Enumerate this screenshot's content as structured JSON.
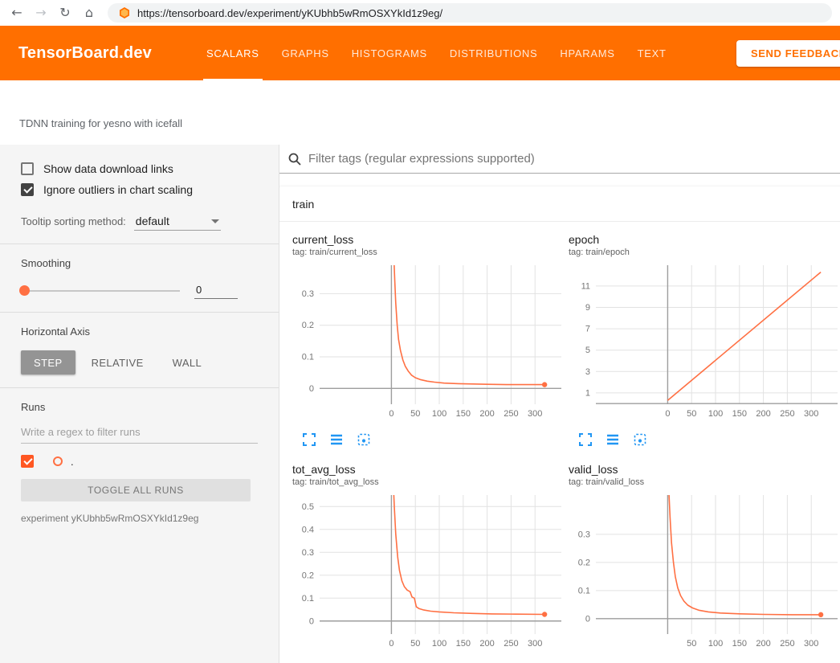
{
  "browser": {
    "url": "https://tensorboard.dev/experiment/yKUbhb5wRmOSXYkId1z9eg/",
    "glyphs": {
      "back": "←",
      "forward": "→",
      "reload": "↻",
      "home": "⌂"
    }
  },
  "header": {
    "logo": "TensorBoard.dev",
    "tabs": [
      "SCALARS",
      "GRAPHS",
      "HISTOGRAMS",
      "DISTRIBUTIONS",
      "HPARAMS",
      "TEXT"
    ],
    "active_tab": "SCALARS",
    "feedback_button": "SEND FEEDBACK"
  },
  "experiment_title": "TDNN training for yesno with icefall",
  "sidebar": {
    "show_download": {
      "label": "Show data download links",
      "checked": false
    },
    "ignore_outliers": {
      "label": "Ignore outliers in chart scaling",
      "checked": true
    },
    "tooltip_sorting_label": "Tooltip sorting method:",
    "tooltip_sorting_value": "default",
    "smoothing_label": "Smoothing",
    "smoothing_value": "0",
    "horizontal_axis_label": "Horizontal Axis",
    "axis_buttons": [
      "STEP",
      "RELATIVE",
      "WALL"
    ],
    "axis_selected": "STEP",
    "runs_label": "Runs",
    "runs_filter_placeholder": "Write a regex to filter runs",
    "run_item": {
      "label": ".",
      "checked": true,
      "color": "#ff7043"
    },
    "toggle_all_label": "TOGGLE ALL RUNS",
    "experiment_note": "experiment yKUbhb5wRmOSXYkId1z9eg"
  },
  "main": {
    "filter_placeholder": "Filter tags (regular expressions supported)",
    "group_title": "train"
  },
  "icons": {
    "browser": [
      "back-arrow",
      "forward-arrow",
      "reload",
      "home"
    ],
    "address_favicon": "tensorboard-logo",
    "filter": "search-icon",
    "tooltip_caret": "chevron-down-icon",
    "chart_toolbar": [
      "expand-chart-icon",
      "runs-table-icon",
      "fit-domain-icon"
    ]
  },
  "colors": {
    "header_orange": "#ff6f00",
    "run_line": "#ff7043",
    "icon_blue": "#2196f3",
    "grid": "#e2e2e2",
    "zero_axis": "#9e9e9e"
  },
  "chart_data": [
    {
      "type": "line",
      "title": "current_loss",
      "tag": "tag: train/current_loss",
      "xlim": [
        -150,
        355
      ],
      "ylim": [
        -0.05,
        0.39
      ],
      "xticks": [
        0,
        50,
        100,
        150,
        200,
        250,
        300
      ],
      "yticks": [
        0,
        0.1,
        0.2,
        0.3
      ],
      "series": [
        {
          "name": ".",
          "color": "#ff7043",
          "end_dot": true,
          "points": [
            [
              2,
              0.55
            ],
            [
              5,
              0.42
            ],
            [
              7,
              0.34
            ],
            [
              9,
              0.27
            ],
            [
              12,
              0.2
            ],
            [
              15,
              0.155
            ],
            [
              19,
              0.12
            ],
            [
              24,
              0.09
            ],
            [
              29,
              0.07
            ],
            [
              35,
              0.055
            ],
            [
              42,
              0.042
            ],
            [
              50,
              0.034
            ],
            [
              60,
              0.028
            ],
            [
              75,
              0.023
            ],
            [
              90,
              0.02
            ],
            [
              110,
              0.017
            ],
            [
              140,
              0.015
            ],
            [
              170,
              0.014
            ],
            [
              200,
              0.013
            ],
            [
              240,
              0.012
            ],
            [
              280,
              0.012
            ],
            [
              320,
              0.012
            ]
          ]
        }
      ]
    },
    {
      "type": "line",
      "title": "epoch",
      "tag": "tag: train/epoch",
      "xlim": [
        -150,
        355
      ],
      "ylim": [
        -0.06,
        12.95
      ],
      "xticks": [
        0,
        50,
        100,
        150,
        200,
        250,
        300
      ],
      "yticks": [
        1,
        3,
        5,
        7,
        9,
        11
      ],
      "series": [
        {
          "name": ".",
          "color": "#ff7043",
          "end_dot": false,
          "points": [
            [
              0,
              0.3
            ],
            [
              320,
              12.3
            ]
          ]
        }
      ]
    },
    {
      "type": "line",
      "title": "tot_avg_loss",
      "tag": "tag: train/tot_avg_loss",
      "xlim": [
        -150,
        355
      ],
      "ylim": [
        -0.057,
        0.55
      ],
      "xticks": [
        0,
        50,
        100,
        150,
        200,
        250,
        300
      ],
      "yticks": [
        0,
        0.1,
        0.2,
        0.3,
        0.4,
        0.5
      ],
      "series": [
        {
          "name": ".",
          "color": "#ff7043",
          "end_dot": true,
          "points": [
            [
              3,
              0.65
            ],
            [
              6,
              0.5
            ],
            [
              9,
              0.38
            ],
            [
              13,
              0.28
            ],
            [
              17,
              0.22
            ],
            [
              22,
              0.175
            ],
            [
              27,
              0.15
            ],
            [
              33,
              0.135
            ],
            [
              39,
              0.128
            ],
            [
              43,
              0.105
            ],
            [
              48,
              0.1
            ],
            [
              52,
              0.062
            ],
            [
              58,
              0.054
            ],
            [
              68,
              0.048
            ],
            [
              82,
              0.043
            ],
            [
              100,
              0.04
            ],
            [
              130,
              0.036
            ],
            [
              170,
              0.033
            ],
            [
              210,
              0.031
            ],
            [
              260,
              0.03
            ],
            [
              320,
              0.029
            ]
          ]
        }
      ]
    },
    {
      "type": "line",
      "title": "valid_loss",
      "tag": "tag: train/valid_loss",
      "xlim": [
        -150,
        355
      ],
      "ylim": [
        -0.055,
        0.44
      ],
      "xticks": [
        50,
        100,
        150,
        200,
        250,
        300
      ],
      "yticks": [
        0,
        0.1,
        0.2,
        0.3
      ],
      "series": [
        {
          "name": ".",
          "color": "#ff7043",
          "end_dot": true,
          "points": [
            [
              0,
              0.6
            ],
            [
              2,
              0.47
            ],
            [
              5,
              0.36
            ],
            [
              8,
              0.27
            ],
            [
              12,
              0.2
            ],
            [
              16,
              0.15
            ],
            [
              21,
              0.11
            ],
            [
              27,
              0.082
            ],
            [
              34,
              0.062
            ],
            [
              42,
              0.048
            ],
            [
              52,
              0.038
            ],
            [
              65,
              0.03
            ],
            [
              85,
              0.024
            ],
            [
              110,
              0.02
            ],
            [
              150,
              0.017
            ],
            [
              200,
              0.015
            ],
            [
              260,
              0.014
            ],
            [
              320,
              0.014
            ]
          ]
        }
      ]
    }
  ]
}
